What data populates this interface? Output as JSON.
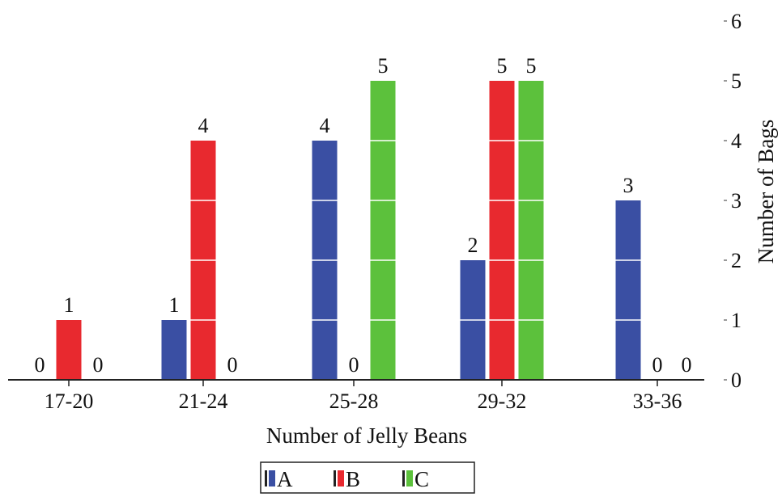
{
  "chart_data": {
    "type": "bar",
    "categories": [
      "17-20",
      "21-24",
      "25-28",
      "29-32",
      "33-36"
    ],
    "series": [
      {
        "name": "A",
        "values": [
          0,
          1,
          4,
          2,
          3
        ]
      },
      {
        "name": "B",
        "values": [
          1,
          4,
          0,
          5,
          0
        ]
      },
      {
        "name": "C",
        "values": [
          0,
          0,
          5,
          5,
          0
        ]
      }
    ],
    "xlabel": "Number of Jelly Beans",
    "ylabel": "Number of Bags",
    "ylim": [
      0,
      6
    ],
    "yticks": [
      0,
      1,
      2,
      3,
      4,
      5,
      6
    ],
    "y_axis_side": "right",
    "grid": false,
    "legend": {
      "position": "bottom-center",
      "entries": [
        "A",
        "B",
        "C"
      ]
    },
    "colors": {
      "A": "#3a4fa3",
      "B": "#e8292f",
      "C": "#5cc13c"
    }
  }
}
